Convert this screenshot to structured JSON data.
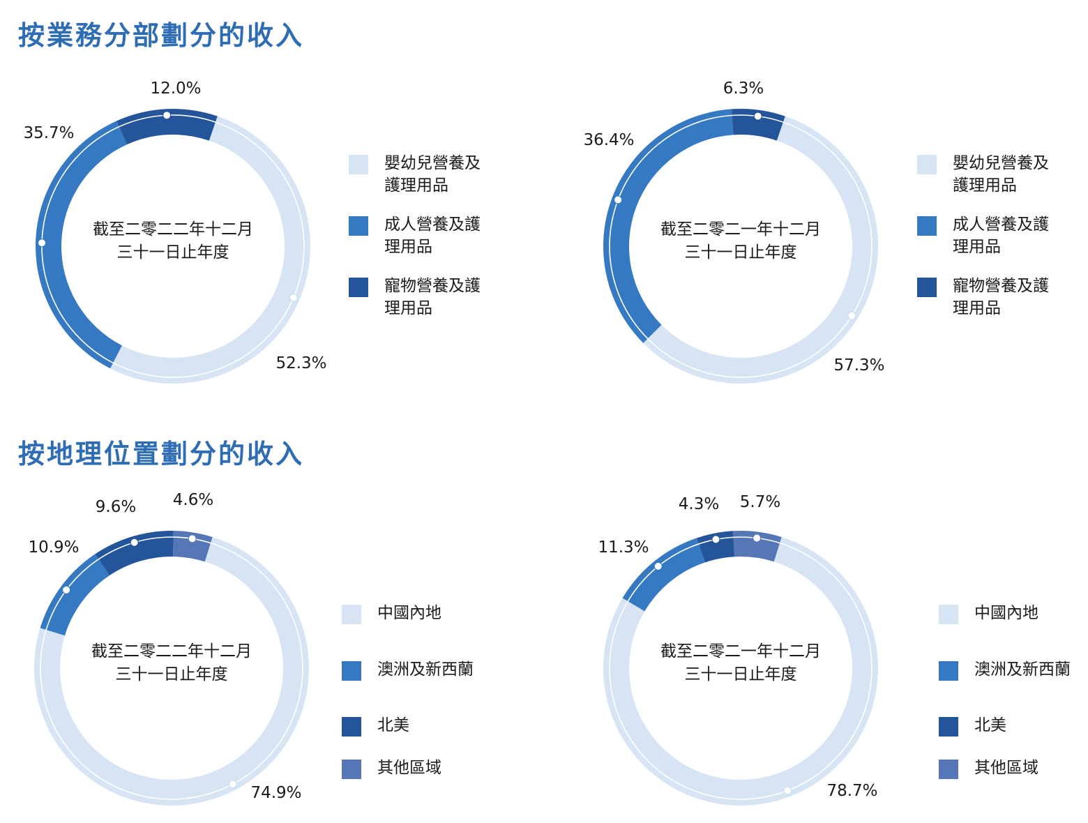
{
  "titles": {
    "segment": "按業務分部劃分的收入",
    "geo": "按地理位置劃分的收入"
  },
  "colors": {
    "light": "#d6e4f4",
    "medium": "#3579c3",
    "dark": "#245499",
    "slate": "#5577b5"
  },
  "legends": {
    "segment": [
      "嬰幼兒營養及\n護理用品",
      "成人營養及護\n理用品",
      "寵物營養及護\n理用品"
    ],
    "geo": [
      "中國內地",
      "澳洲及新西蘭",
      "北美",
      "其他區域"
    ]
  },
  "chart_data": [
    {
      "type": "pie",
      "group": "segment",
      "center_label": [
        "截至二零二二年十二月",
        "三十一日止年度"
      ],
      "categories": [
        "嬰幼兒營養及護理用品",
        "成人營養及護理用品",
        "寵物營養及護理用品"
      ],
      "values": [
        52.3,
        35.7,
        12.0
      ],
      "labels": [
        "52.3%",
        "35.7%",
        "12.0%"
      ],
      "colors": [
        "#d6e4f4",
        "#3579c3",
        "#245499"
      ]
    },
    {
      "type": "pie",
      "group": "segment",
      "center_label": [
        "截至二零二一年十二月",
        "三十一日止年度"
      ],
      "categories": [
        "嬰幼兒營養及護理用品",
        "成人營養及護理用品",
        "寵物營養及護理用品"
      ],
      "values": [
        57.3,
        36.4,
        6.3
      ],
      "labels": [
        "57.3%",
        "36.4%",
        "6.3%"
      ],
      "colors": [
        "#d6e4f4",
        "#3579c3",
        "#245499"
      ]
    },
    {
      "type": "pie",
      "group": "geo",
      "center_label": [
        "截至二零二二年十二月",
        "三十一日止年度"
      ],
      "categories": [
        "中國內地",
        "澳洲及新西蘭",
        "北美",
        "其他區域"
      ],
      "values": [
        74.9,
        10.9,
        9.6,
        4.6
      ],
      "labels": [
        "74.9%",
        "10.9%",
        "9.6%",
        "4.6%"
      ],
      "colors": [
        "#d6e4f4",
        "#3579c3",
        "#245499",
        "#5577b5"
      ]
    },
    {
      "type": "pie",
      "group": "geo",
      "center_label": [
        "截至二零二一年十二月",
        "三十一日止年度"
      ],
      "categories": [
        "中國內地",
        "澳洲及新西蘭",
        "北美",
        "其他區域"
      ],
      "values": [
        78.7,
        11.3,
        4.3,
        5.7
      ],
      "labels": [
        "78.7%",
        "11.3%",
        "4.3%",
        "5.7%"
      ],
      "colors": [
        "#d6e4f4",
        "#3579c3",
        "#245499",
        "#5577b5"
      ]
    }
  ]
}
